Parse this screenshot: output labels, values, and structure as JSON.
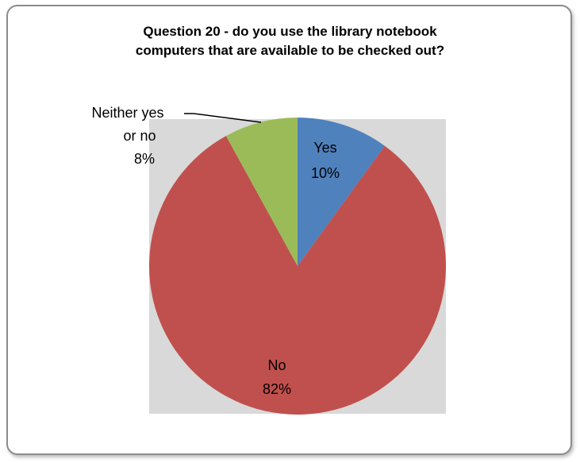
{
  "chart_data": {
    "type": "pie",
    "title_lines": [
      "Question 20 - do you use the library notebook",
      "computers that are available to be checked out?"
    ],
    "slices": [
      {
        "label": "Yes",
        "value": 10,
        "pct_text": "10%",
        "color": "#4f81bd"
      },
      {
        "label": "No",
        "value": 82,
        "pct_text": "82%",
        "color": "#c0504d"
      },
      {
        "label": "Neither yes or no",
        "value": 8,
        "pct_text": "8%",
        "color": "#9bbb59",
        "label_lines": [
          "Neither yes",
          "or no"
        ]
      }
    ],
    "plot_background": "#d9d9d9",
    "legend": "none"
  }
}
